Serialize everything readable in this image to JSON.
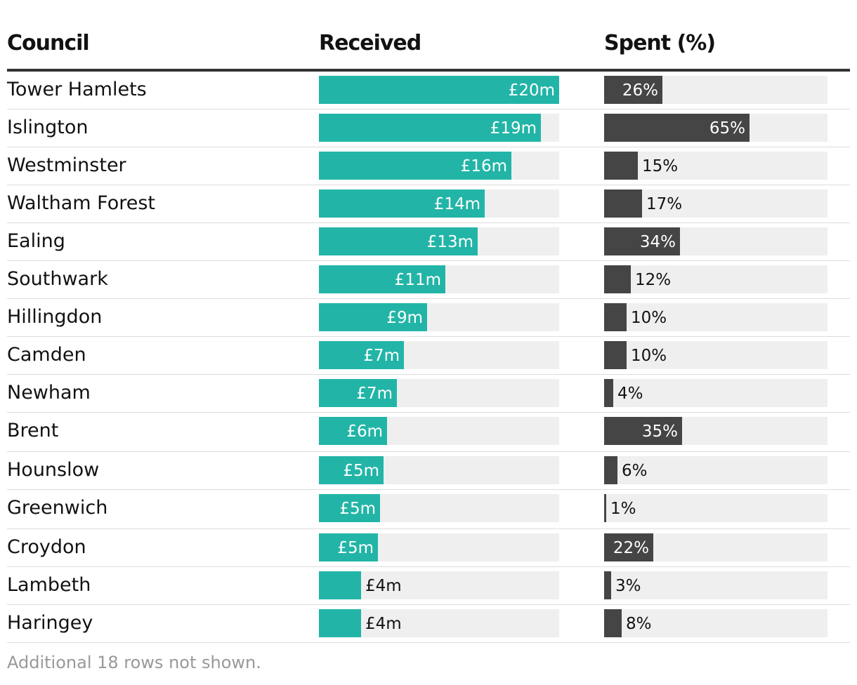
{
  "headers": {
    "council": "Council",
    "received": "Received",
    "spent": "Spent (%)"
  },
  "colors": {
    "received": "#22b5a7",
    "spent": "#454545",
    "track": "#efefef",
    "rule": "#333333"
  },
  "chart_data": {
    "type": "table",
    "columns": [
      "Council",
      "Received",
      "Spent (%)"
    ],
    "received_max": 20,
    "spent_max": 100,
    "rows": [
      {
        "council": "Tower Hamlets",
        "received": 20,
        "received_label": "£20m",
        "spent": 26,
        "spent_label": "26%"
      },
      {
        "council": "Islington",
        "received": 18.5,
        "received_label": "£19m",
        "spent": 65,
        "spent_label": "65%"
      },
      {
        "council": "Westminster",
        "received": 16,
        "received_label": "£16m",
        "spent": 15,
        "spent_label": "15%"
      },
      {
        "council": "Waltham Forest",
        "received": 13.8,
        "received_label": "£14m",
        "spent": 17,
        "spent_label": "17%"
      },
      {
        "council": "Ealing",
        "received": 13.2,
        "received_label": "£13m",
        "spent": 34,
        "spent_label": "34%"
      },
      {
        "council": "Southwark",
        "received": 10.5,
        "received_label": "£11m",
        "spent": 12,
        "spent_label": "12%"
      },
      {
        "council": "Hillingdon",
        "received": 9,
        "received_label": "£9m",
        "spent": 10,
        "spent_label": "10%"
      },
      {
        "council": "Camden",
        "received": 7.1,
        "received_label": "£7m",
        "spent": 10,
        "spent_label": "10%"
      },
      {
        "council": "Newham",
        "received": 6.5,
        "received_label": "£7m",
        "spent": 4,
        "spent_label": "4%"
      },
      {
        "council": "Brent",
        "received": 5.7,
        "received_label": "£6m",
        "spent": 35,
        "spent_label": "35%"
      },
      {
        "council": "Hounslow",
        "received": 5.4,
        "received_label": "£5m",
        "spent": 6,
        "spent_label": "6%"
      },
      {
        "council": "Greenwich",
        "received": 5.1,
        "received_label": "£5m",
        "spent": 1,
        "spent_label": "1%"
      },
      {
        "council": "Croydon",
        "received": 4.9,
        "received_label": "£5m",
        "spent": 22,
        "spent_label": "22%"
      },
      {
        "council": "Lambeth",
        "received": 3.5,
        "received_label": "£4m",
        "spent": 3,
        "spent_label": "3%"
      },
      {
        "council": "Haringey",
        "received": 3.5,
        "received_label": "£4m",
        "spent": 8,
        "spent_label": "8%"
      }
    ]
  },
  "footer_note": "Additional 18 rows not shown."
}
